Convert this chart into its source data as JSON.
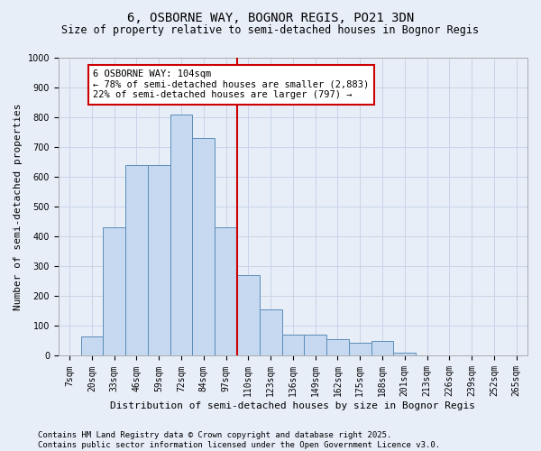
{
  "title1": "6, OSBORNE WAY, BOGNOR REGIS, PO21 3DN",
  "title2": "Size of property relative to semi-detached houses in Bognor Regis",
  "xlabel": "Distribution of semi-detached houses by size in Bognor Regis",
  "ylabel": "Number of semi-detached properties",
  "categories": [
    "7sqm",
    "20sqm",
    "33sqm",
    "46sqm",
    "59sqm",
    "72sqm",
    "84sqm",
    "97sqm",
    "110sqm",
    "123sqm",
    "136sqm",
    "149sqm",
    "162sqm",
    "175sqm",
    "188sqm",
    "201sqm",
    "213sqm",
    "226sqm",
    "239sqm",
    "252sqm",
    "265sqm"
  ],
  "values": [
    0,
    65,
    430,
    640,
    640,
    810,
    730,
    430,
    270,
    155,
    70,
    70,
    55,
    45,
    50,
    10,
    0,
    0,
    0,
    0,
    0
  ],
  "bar_color": "#c6d9f0",
  "bar_edge_color": "#5b8db8",
  "annotation_text_line1": "6 OSBORNE WAY: 104sqm",
  "annotation_text_line2": "← 78% of semi-detached houses are smaller (2,883)",
  "annotation_text_line3": "22% of semi-detached houses are larger (797) →",
  "annotation_box_color": "#ffffff",
  "annotation_box_edge_color": "#cc0000",
  "vline_color": "#cc0000",
  "ylim": [
    0,
    1000
  ],
  "yticks": [
    0,
    100,
    200,
    300,
    400,
    500,
    600,
    700,
    800,
    900,
    1000
  ],
  "grid_color": "#c8d4e8",
  "background_color": "#e8eef8",
  "footnote": "Contains HM Land Registry data © Crown copyright and database right 2025.\nContains public sector information licensed under the Open Government Licence v3.0.",
  "footnote_fontsize": 6.5,
  "title1_fontsize": 10,
  "title2_fontsize": 8.5,
  "xlabel_fontsize": 8,
  "ylabel_fontsize": 8,
  "tick_fontsize": 7,
  "annotation_fontsize": 7.5
}
